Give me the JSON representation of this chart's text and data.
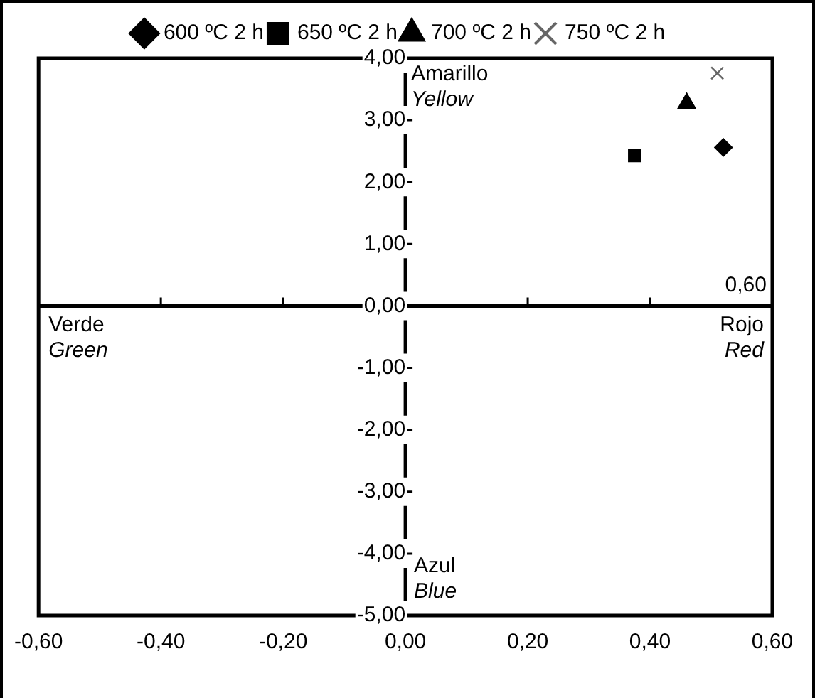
{
  "chart_data": {
    "type": "scatter",
    "legend": "top",
    "series": [
      {
        "name": "600 ºC 2 h",
        "color": "#000000",
        "marker": "diamond",
        "x": [
          0.52
        ],
        "values": [
          2.56
        ]
      },
      {
        "name": "650 ºC 2 h",
        "color": "#000000",
        "marker": "square",
        "x": [
          0.375
        ],
        "values": [
          2.43
        ]
      },
      {
        "name": "700 ºC 2 h",
        "color": "#000000",
        "marker": "triangle",
        "x": [
          0.46
        ],
        "values": [
          3.27
        ]
      },
      {
        "name": "750 ºC 2 h",
        "color": "#666666",
        "marker": "cross",
        "x": [
          0.51
        ],
        "values": [
          3.76
        ]
      }
    ],
    "xlim": [
      -0.6,
      0.6
    ],
    "xticks": [
      {
        "value": -0.6,
        "label": "-0,60"
      },
      {
        "value": -0.4,
        "label": "-0,40"
      },
      {
        "value": -0.2,
        "label": "-0,20"
      },
      {
        "value": 0,
        "label": "0,00"
      },
      {
        "value": 0.2,
        "label": "0,20"
      },
      {
        "value": 0.4,
        "label": "0,40"
      },
      {
        "value": 0.6,
        "label": "0,60"
      }
    ],
    "ylim": [
      -5,
      4
    ],
    "yticks": [
      {
        "value": 4,
        "label": "4,00"
      },
      {
        "value": 3,
        "label": "3,00"
      },
      {
        "value": 2,
        "label": "2,00"
      },
      {
        "value": 1,
        "label": "1,00"
      },
      {
        "value": 0,
        "label": "0,00"
      },
      {
        "value": -1,
        "label": "-1,00"
      },
      {
        "value": -2,
        "label": "-2,00"
      },
      {
        "value": -3,
        "label": "-3,00"
      },
      {
        "value": -4,
        "label": "-4,00"
      },
      {
        "value": -5,
        "label": "-5,00"
      }
    ],
    "annotations": [
      "Amarillo\nYellow",
      "Verde\nGreen",
      "Rojo\nRed",
      "Azul\nBlue",
      "0,60"
    ]
  }
}
